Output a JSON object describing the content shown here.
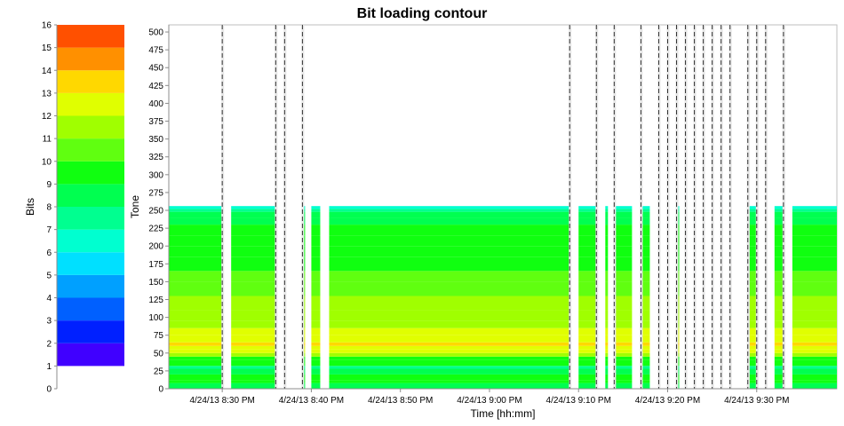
{
  "chart_data": {
    "type": "heatmap",
    "title": "Bit loading contour",
    "xlabel": "Time [hh:mm]",
    "ylabel": "Tone",
    "colorbar_label": "Bits",
    "ylim": [
      0,
      510
    ],
    "yticks": [
      0,
      25,
      50,
      75,
      100,
      125,
      150,
      175,
      200,
      225,
      250,
      275,
      300,
      325,
      350,
      375,
      400,
      425,
      450,
      475,
      500
    ],
    "x_range": [
      "8:24",
      "9:39"
    ],
    "xticks": [
      {
        "time": "8:30",
        "label": "4/24/13 8:30 PM"
      },
      {
        "time": "8:40",
        "label": "4/24/13 8:40 PM"
      },
      {
        "time": "8:50",
        "label": "4/24/13 8:50 PM"
      },
      {
        "time": "9:00",
        "label": "4/24/13 9:00 PM"
      },
      {
        "time": "9:10",
        "label": "4/24/13 9:10 PM"
      },
      {
        "time": "9:20",
        "label": "4/24/13 9:20 PM"
      },
      {
        "time": "9:30",
        "label": "4/24/13 9:30 PM"
      }
    ],
    "data_tone_range": [
      0,
      256
    ],
    "colorbar": {
      "range": [
        0,
        16
      ],
      "ticks": [
        0,
        1,
        2,
        3,
        4,
        5,
        6,
        7,
        8,
        9,
        10,
        11,
        12,
        13,
        14,
        15,
        16
      ],
      "levels": [
        {
          "from": 1,
          "to": 2,
          "color": "#4000ff"
        },
        {
          "from": 2,
          "to": 3,
          "color": "#0020ff"
        },
        {
          "from": 3,
          "to": 4,
          "color": "#0060ff"
        },
        {
          "from": 4,
          "to": 5,
          "color": "#00a0ff"
        },
        {
          "from": 5,
          "to": 6,
          "color": "#00e0ff"
        },
        {
          "from": 6,
          "to": 7,
          "color": "#00ffd0"
        },
        {
          "from": 7,
          "to": 8,
          "color": "#00ff90"
        },
        {
          "from": 8,
          "to": 9,
          "color": "#00ff50"
        },
        {
          "from": 9,
          "to": 10,
          "color": "#10ff10"
        },
        {
          "from": 10,
          "to": 11,
          "color": "#60ff10"
        },
        {
          "from": 11,
          "to": 12,
          "color": "#a0ff00"
        },
        {
          "from": 12,
          "to": 13,
          "color": "#e0ff00"
        },
        {
          "from": 13,
          "to": 14,
          "color": "#ffd800"
        },
        {
          "from": 14,
          "to": 15,
          "color": "#ff9000"
        },
        {
          "from": 15,
          "to": 16,
          "color": "#ff5000"
        }
      ]
    },
    "tone_profile": [
      {
        "from": 0,
        "to": 8,
        "bits": 8
      },
      {
        "from": 8,
        "to": 12,
        "bits": 9
      },
      {
        "from": 12,
        "to": 20,
        "bits": 9
      },
      {
        "from": 20,
        "to": 28,
        "bits": 8
      },
      {
        "from": 28,
        "to": 32,
        "bits": 7
      },
      {
        "from": 32,
        "to": 40,
        "bits": 9
      },
      {
        "from": 40,
        "to": 45,
        "bits": 9
      },
      {
        "from": 45,
        "to": 50,
        "bits": 11
      },
      {
        "from": 50,
        "to": 55,
        "bits": 12
      },
      {
        "from": 55,
        "to": 60,
        "bits": 12
      },
      {
        "from": 60,
        "to": 65,
        "bits": 13
      },
      {
        "from": 65,
        "to": 75,
        "bits": 12
      },
      {
        "from": 75,
        "to": 85,
        "bits": 12
      },
      {
        "from": 85,
        "to": 95,
        "bits": 11
      },
      {
        "from": 95,
        "to": 110,
        "bits": 11
      },
      {
        "from": 110,
        "to": 130,
        "bits": 11
      },
      {
        "from": 130,
        "to": 150,
        "bits": 10
      },
      {
        "from": 150,
        "to": 165,
        "bits": 10
      },
      {
        "from": 165,
        "to": 185,
        "bits": 9
      },
      {
        "from": 185,
        "to": 200,
        "bits": 9
      },
      {
        "from": 200,
        "to": 215,
        "bits": 9
      },
      {
        "from": 215,
        "to": 230,
        "bits": 9
      },
      {
        "from": 230,
        "to": 240,
        "bits": 8
      },
      {
        "from": 240,
        "to": 248,
        "bits": 8
      },
      {
        "from": 248,
        "to": 252,
        "bits": 7
      },
      {
        "from": 252,
        "to": 256,
        "bits": 6
      }
    ],
    "data_blocks": [
      {
        "start": "8:24",
        "end": "8:30"
      },
      {
        "start": "8:31",
        "end": "8:36"
      },
      {
        "start": "8:39",
        "end": "8:39"
      },
      {
        "start": "8:40",
        "end": "8:41"
      },
      {
        "start": "8:42",
        "end": "9:09"
      },
      {
        "start": "9:10",
        "end": "9:12"
      },
      {
        "start": "9:13",
        "end": "9:13"
      },
      {
        "start": "9:14",
        "end": "9:16"
      },
      {
        "start": "9:17",
        "end": "9:18"
      },
      {
        "start": "9:21",
        "end": "9:21"
      },
      {
        "start": "9:29",
        "end": "9:30"
      },
      {
        "start": "9:32",
        "end": "9:33"
      },
      {
        "start": "9:34",
        "end": "9:39"
      }
    ],
    "dropouts": [
      "8:30",
      "8:36",
      "8:37",
      "8:39",
      "9:09",
      "9:12",
      "9:14",
      "9:17",
      "9:19",
      "9:20",
      "9:20",
      "9:21",
      "9:22",
      "9:22",
      "9:23",
      "9:24",
      "9:25",
      "9:26",
      "9:27",
      "9:29",
      "9:29",
      "9:30",
      "9:31",
      "9:33",
      "9:33"
    ],
    "grid": false,
    "legend": "colorbar-left"
  }
}
